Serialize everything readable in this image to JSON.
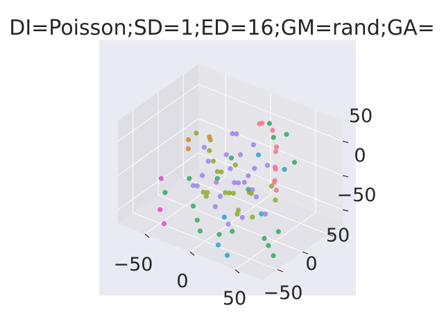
{
  "chart_data": {
    "type": "scatter",
    "projection": "3d",
    "title": "DI=Poisson;SD=1;ED=16;GM=rand;GA=",
    "xlabel": "",
    "ylabel": "",
    "zlabel": "",
    "xlim": [
      -80,
      80
    ],
    "ylim": [
      -80,
      80
    ],
    "zlim": [
      -70,
      80
    ],
    "x_ticks": [
      "−50",
      "0",
      "50"
    ],
    "y_ticks": [
      "50",
      "0",
      "−50"
    ],
    "z_ticks": [
      "50",
      "0",
      "−50"
    ],
    "grid": true,
    "colors": {
      "pane_back": "#e5e5ea",
      "pane_side": "#dedee4",
      "pane_floor": "#e2e2e8",
      "gridline": "#ffffff",
      "background": "#eaeaf2"
    },
    "series": [
      {
        "color": "#f0788c",
        "points": [
          [
            10,
            -40,
            60
          ],
          [
            14,
            -38,
            64
          ],
          [
            30,
            -30,
            66
          ],
          [
            40,
            -20,
            52
          ],
          [
            44,
            -10,
            30
          ],
          [
            48,
            -4,
            32
          ],
          [
            52,
            6,
            20
          ],
          [
            56,
            12,
            28
          ],
          [
            60,
            16,
            18
          ],
          [
            36,
            -26,
            40
          ]
        ]
      },
      {
        "color": "#d08a2a",
        "points": [
          [
            -40,
            -30,
            20
          ],
          [
            -52,
            -10,
            20
          ],
          [
            -50,
            -6,
            10
          ]
        ]
      },
      {
        "color": "#8faa30",
        "points": [
          [
            -60,
            -40,
            10
          ],
          [
            -50,
            -50,
            0
          ],
          [
            -40,
            -30,
            0
          ],
          [
            -30,
            -20,
            -5
          ],
          [
            -20,
            -10,
            -10
          ],
          [
            -10,
            0,
            0
          ],
          [
            0,
            10,
            -20
          ],
          [
            10,
            20,
            -10
          ],
          [
            20,
            30,
            0
          ],
          [
            30,
            40,
            -20
          ],
          [
            40,
            30,
            10
          ],
          [
            0,
            -10,
            10
          ],
          [
            -20,
            10,
            -30
          ],
          [
            10,
            -20,
            -30
          ],
          [
            30,
            10,
            -40
          ],
          [
            20,
            20,
            -30
          ],
          [
            -10,
            30,
            -20
          ],
          [
            40,
            -10,
            0
          ],
          [
            50,
            0,
            -10
          ],
          [
            -30,
            0,
            -40
          ]
        ]
      },
      {
        "color": "#34a860",
        "points": [
          [
            -40,
            10,
            -20
          ],
          [
            -30,
            20,
            -50
          ],
          [
            -20,
            30,
            -60
          ],
          [
            10,
            40,
            -60
          ],
          [
            30,
            50,
            -40
          ],
          [
            60,
            40,
            -40
          ],
          [
            70,
            30,
            -30
          ],
          [
            70,
            50,
            -40
          ],
          [
            70,
            40,
            -60
          ],
          [
            -50,
            40,
            -30
          ],
          [
            20,
            0,
            -10
          ],
          [
            60,
            -20,
            40
          ],
          [
            40,
            -40,
            60
          ],
          [
            -20,
            -10,
            -20
          ],
          [
            -10,
            -20,
            10
          ],
          [
            20,
            -50,
            40
          ],
          [
            0,
            60,
            -50
          ],
          [
            10,
            -60,
            50
          ]
        ]
      },
      {
        "color": "#2fa2c8",
        "points": [
          [
            20,
            -20,
            30
          ],
          [
            40,
            10,
            -30
          ],
          [
            10,
            30,
            -40
          ],
          [
            30,
            60,
            -70
          ],
          [
            20,
            60,
            -60
          ],
          [
            60,
            0,
            40
          ]
        ]
      },
      {
        "color": "#9d83e8",
        "points": [
          [
            -20,
            -40,
            30
          ],
          [
            -10,
            -30,
            40
          ],
          [
            0,
            -20,
            20
          ],
          [
            10,
            -10,
            -10
          ],
          [
            20,
            0,
            10
          ],
          [
            30,
            10,
            0
          ],
          [
            -10,
            10,
            -10
          ],
          [
            0,
            20,
            -20
          ],
          [
            20,
            20,
            10
          ],
          [
            30,
            30,
            -30
          ],
          [
            -20,
            30,
            -10
          ],
          [
            -30,
            20,
            -20
          ],
          [
            40,
            20,
            0
          ],
          [
            10,
            -30,
            0
          ],
          [
            -10,
            -10,
            20
          ],
          [
            20,
            -10,
            50
          ],
          [
            0,
            0,
            10
          ],
          [
            30,
            -20,
            20
          ],
          [
            -30,
            -10,
            0
          ],
          [
            10,
            10,
            0
          ],
          [
            -40,
            -20,
            10
          ],
          [
            50,
            20,
            -20
          ],
          [
            0,
            30,
            -30
          ],
          [
            20,
            40,
            -40
          ],
          [
            -20,
            20,
            0
          ]
        ]
      },
      {
        "color": "#e048c8",
        "points": [
          [
            -60,
            30,
            -20
          ],
          [
            -50,
            50,
            -50
          ],
          [
            -40,
            60,
            -60
          ]
        ]
      }
    ]
  }
}
